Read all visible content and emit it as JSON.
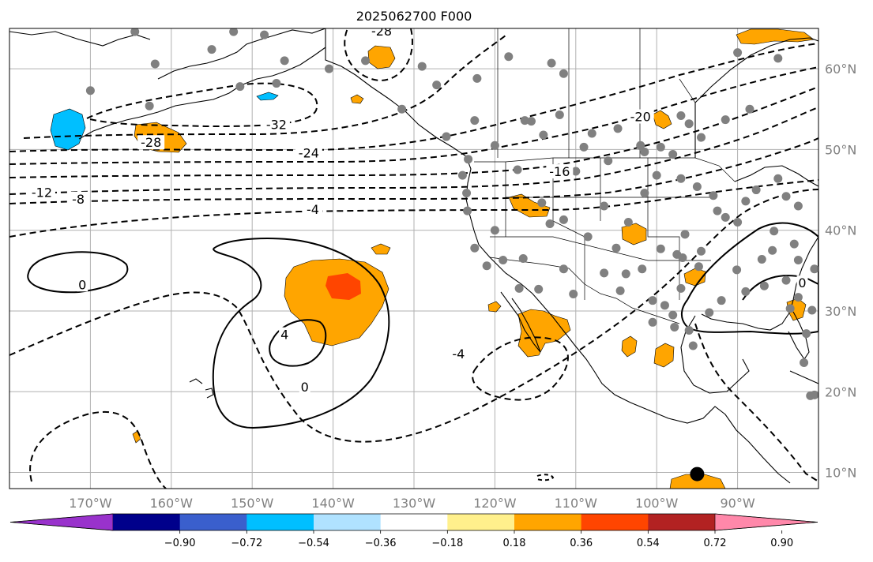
{
  "title": "2025062700 F000",
  "map": {
    "lon_range": [
      -180,
      -80
    ],
    "lat_range": [
      8,
      65
    ],
    "lon_ticks": [
      {
        "value": -170,
        "label": "170°W"
      },
      {
        "value": -160,
        "label": "160°W"
      },
      {
        "value": -150,
        "label": "150°W"
      },
      {
        "value": -140,
        "label": "140°W"
      },
      {
        "value": -130,
        "label": "130°W"
      },
      {
        "value": -120,
        "label": "120°W"
      },
      {
        "value": -110,
        "label": "110°W"
      },
      {
        "value": -100,
        "label": "100°W"
      },
      {
        "value": -90,
        "label": "90°W"
      }
    ],
    "lat_ticks": [
      {
        "value": 60,
        "label": "60°N"
      },
      {
        "value": 50,
        "label": "50°N"
      },
      {
        "value": 40,
        "label": "40°N"
      },
      {
        "value": 30,
        "label": "30°N"
      },
      {
        "value": 20,
        "label": "20°N"
      },
      {
        "value": 10,
        "label": "10°N"
      }
    ],
    "gridlines": true,
    "contour_labels": [
      {
        "text": "-28",
        "lon": -134,
        "lat": 64.6
      },
      {
        "text": "-32",
        "lon": -147,
        "lat": 53
      },
      {
        "text": "-28",
        "lon": -162.5,
        "lat": 50.8
      },
      {
        "text": "-24",
        "lon": -143,
        "lat": 49.5
      },
      {
        "text": "-20",
        "lon": -102,
        "lat": 54
      },
      {
        "text": "-16",
        "lon": -112,
        "lat": 47.2
      },
      {
        "text": "-12",
        "lon": -176,
        "lat": 44.6
      },
      {
        "text": "-8",
        "lon": -171.5,
        "lat": 43.8
      },
      {
        "text": "-4",
        "lon": -142.5,
        "lat": 42.5
      },
      {
        "text": "-4",
        "lon": -124.5,
        "lat": 24.6
      },
      {
        "text": "0",
        "lon": -171,
        "lat": 33.2
      },
      {
        "text": "0",
        "lon": -143.5,
        "lat": 20.5
      },
      {
        "text": "4",
        "lon": -146,
        "lat": 27
      },
      {
        "text": "0",
        "lon": -82,
        "lat": 33.4
      }
    ],
    "marker": {
      "lon": -95,
      "lat": 9.8
    }
  },
  "colorbar": {
    "colors": [
      "#9932cc",
      "#00008b",
      "#3a5fcd",
      "#00bfff",
      "#b0e2ff",
      "#ffffff",
      "#fff08c",
      "#ffa500",
      "#ff4500",
      "#b22222",
      "#ff88aa"
    ],
    "tick_labels": [
      "−0.90",
      "−0.72",
      "−0.54",
      "−0.36",
      "−0.18",
      "0.18",
      "0.36",
      "0.54",
      "0.72",
      "0.90"
    ]
  },
  "colors": {
    "orange": "#ffa500",
    "red": "#ff4500",
    "blue": "#00bfff",
    "station_grey": "#808080"
  }
}
